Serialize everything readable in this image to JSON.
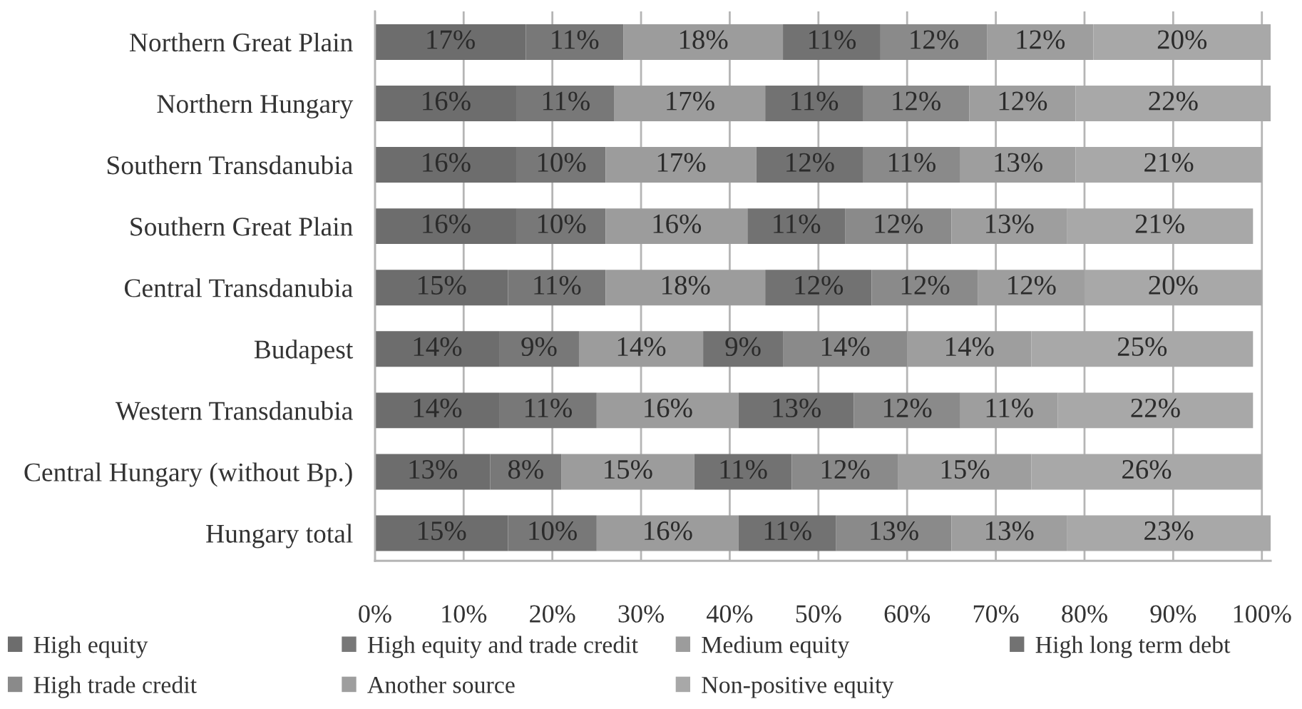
{
  "chart_data": {
    "type": "bar",
    "orientation": "horizontal",
    "stacked": true,
    "categories": [
      "Northern Great Plain",
      "Northern Hungary",
      "Southern Transdanubia",
      "Southern Great Plain",
      "Central Transdanubia",
      "Budapest",
      "Western Transdanubia",
      "Central Hungary (without Bp.)",
      "Hungary total"
    ],
    "series": [
      {
        "name": "High equity",
        "color": "#6d6d6d",
        "values": [
          17,
          16,
          16,
          16,
          15,
          14,
          14,
          13,
          15
        ],
        "value_labels": [
          "17%",
          "16%",
          "16%",
          "16%",
          "15%",
          "14%",
          "14%",
          "13%",
          "15%"
        ]
      },
      {
        "name": "High equity and trade credit",
        "color": "#787878",
        "values": [
          11,
          11,
          10,
          10,
          11,
          9,
          11,
          8,
          10
        ],
        "value_labels": [
          "11%",
          "11%",
          "10%",
          "10%",
          "11%",
          "9%",
          "11%",
          "8%",
          "10%"
        ]
      },
      {
        "name": "Medium equity",
        "color": "#9c9c9c",
        "values": [
          18,
          17,
          17,
          16,
          18,
          14,
          16,
          15,
          16
        ],
        "value_labels": [
          "18%",
          "17%",
          "17%",
          "16%",
          "18%",
          "14%",
          "16%",
          "15%",
          "16%"
        ]
      },
      {
        "name": "High long term debt",
        "color": "#727272",
        "values": [
          11,
          11,
          12,
          11,
          12,
          9,
          13,
          11,
          11
        ],
        "value_labels": [
          "11%",
          "11%",
          "12%",
          "11%",
          "12%",
          "9%",
          "13%",
          "11%",
          "11%"
        ]
      },
      {
        "name": "High trade credit",
        "color": "#8a8a8a",
        "values": [
          12,
          12,
          11,
          12,
          12,
          14,
          12,
          12,
          13
        ],
        "value_labels": [
          "12%",
          "12%",
          "11%",
          "12%",
          "12%",
          "14%",
          "12%",
          "12%",
          "13%"
        ]
      },
      {
        "name": "Another source",
        "color": "#9e9e9e",
        "values": [
          12,
          12,
          13,
          13,
          12,
          14,
          11,
          15,
          13
        ],
        "value_labels": [
          "12%",
          "12%",
          "13%",
          "13%",
          "12%",
          "14%",
          "11%",
          "15%",
          "13%"
        ]
      },
      {
        "name": "Non-positive equity",
        "color": "#a8a8a8",
        "values": [
          20,
          22,
          21,
          21,
          20,
          25,
          22,
          26,
          23
        ],
        "value_labels": [
          "20%",
          "22%",
          "21%",
          "21%",
          "20%",
          "25%",
          "22%",
          "26%",
          "23%"
        ]
      }
    ],
    "xlim": [
      0,
      101
    ],
    "xticks": [
      {
        "value": 0,
        "label": "0%"
      },
      {
        "value": 10,
        "label": "10%"
      },
      {
        "value": 20,
        "label": "20%"
      },
      {
        "value": 30,
        "label": "30%"
      },
      {
        "value": 40,
        "label": "40%"
      },
      {
        "value": 50,
        "label": "50%"
      },
      {
        "value": 60,
        "label": "60%"
      },
      {
        "value": 70,
        "label": "70%"
      },
      {
        "value": 80,
        "label": "80%"
      },
      {
        "value": 90,
        "label": "90%"
      },
      {
        "value": 100,
        "label": "100%"
      }
    ],
    "grid": "x",
    "legend": "bottom"
  }
}
